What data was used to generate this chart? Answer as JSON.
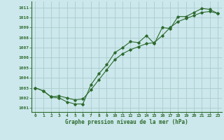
{
  "xlabel": "Graphe pression niveau de la mer (hPa)",
  "background_color": "#cce8ec",
  "grid_color": "#aacccc",
  "line_color": "#2d6a2d",
  "marker_color": "#2d6a2d",
  "x_ticks": [
    0,
    1,
    2,
    3,
    4,
    5,
    6,
    7,
    8,
    9,
    10,
    11,
    12,
    13,
    14,
    15,
    16,
    17,
    18,
    19,
    20,
    21,
    22,
    23
  ],
  "y_ticks": [
    1001,
    1002,
    1003,
    1004,
    1005,
    1006,
    1007,
    1008,
    1009,
    1010,
    1011
  ],
  "ylim": [
    1000.6,
    1011.6
  ],
  "xlim": [
    -0.5,
    23.5
  ],
  "series1_x": [
    0,
    1,
    2,
    3,
    4,
    5,
    6,
    7,
    8,
    9,
    10,
    11,
    12,
    13,
    14,
    15,
    16,
    17,
    18,
    19,
    20,
    21,
    22,
    23
  ],
  "series1_y": [
    1003.0,
    1002.7,
    1002.1,
    1002.0,
    1001.6,
    1001.4,
    1001.4,
    1003.3,
    1004.4,
    1005.3,
    1006.5,
    1007.0,
    1007.6,
    1007.5,
    1008.2,
    1007.4,
    1009.0,
    1008.9,
    1010.1,
    1010.1,
    1010.5,
    1010.9,
    1010.8,
    1010.4
  ],
  "series2_x": [
    0,
    1,
    2,
    3,
    4,
    5,
    6,
    7,
    8,
    9,
    10,
    11,
    12,
    13,
    14,
    15,
    16,
    17,
    18,
    19,
    20,
    21,
    22,
    23
  ],
  "series2_y": [
    1003.0,
    1002.7,
    1002.1,
    1002.2,
    1002.0,
    1001.8,
    1001.9,
    1002.8,
    1003.8,
    1004.8,
    1005.8,
    1006.4,
    1006.8,
    1007.1,
    1007.4,
    1007.5,
    1008.2,
    1009.0,
    1009.6,
    1009.9,
    1010.2,
    1010.5,
    1010.6,
    1010.4
  ]
}
